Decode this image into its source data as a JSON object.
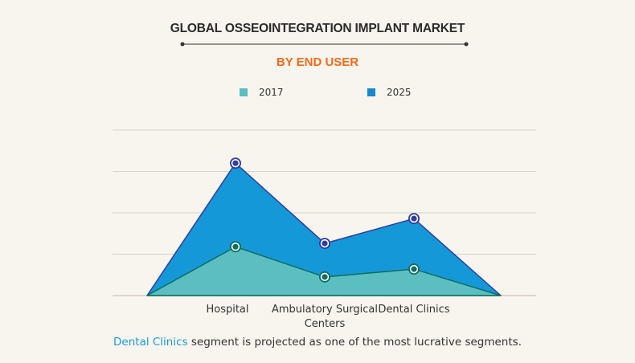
{
  "chart_data": {
    "type": "area",
    "title": "GLOBAL OSSEOINTEGRATION IMPLANT MARKET",
    "subtitle": "BY END USER",
    "categories": [
      "Hospital",
      "Ambulatory Surgical Centers",
      "Dental Clinics"
    ],
    "category_label_lines": [
      [
        "Hospital"
      ],
      [
        "Ambulatory Surgical",
        "Centers"
      ],
      [
        "Dental Clinics"
      ]
    ],
    "series": [
      {
        "name": "2025",
        "color": "#1598d8",
        "stroke": "#2f3e9e",
        "values": [
          3.2,
          1.26,
          1.86
        ]
      },
      {
        "name": "2017",
        "color": "#5bbfc2",
        "stroke": "#0f6e5e",
        "values": [
          1.18,
          0.45,
          0.64
        ]
      }
    ],
    "ylim": [
      0,
      4
    ],
    "y_ticks_labeled": false,
    "grid": true,
    "legend": "top-center",
    "xlabel": "",
    "ylabel": ""
  },
  "legend": [
    {
      "label": "2017",
      "color": "#5bbfc2"
    },
    {
      "label": "2025",
      "color": "#1588d0"
    }
  ],
  "footnote": {
    "highlight": "Dental Clinics",
    "rest": " segment is projected as one of the most lucrative segments."
  }
}
